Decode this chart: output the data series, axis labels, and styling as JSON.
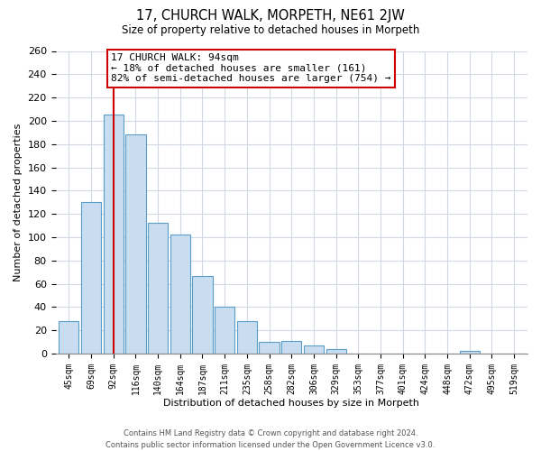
{
  "title": "17, CHURCH WALK, MORPETH, NE61 2JW",
  "subtitle": "Size of property relative to detached houses in Morpeth",
  "xlabel": "Distribution of detached houses by size in Morpeth",
  "ylabel": "Number of detached properties",
  "bin_labels": [
    "45sqm",
    "69sqm",
    "92sqm",
    "116sqm",
    "140sqm",
    "164sqm",
    "187sqm",
    "211sqm",
    "235sqm",
    "258sqm",
    "282sqm",
    "306sqm",
    "329sqm",
    "353sqm",
    "377sqm",
    "401sqm",
    "424sqm",
    "448sqm",
    "472sqm",
    "495sqm",
    "519sqm"
  ],
  "bar_heights": [
    28,
    130,
    205,
    188,
    112,
    102,
    67,
    40,
    28,
    10,
    11,
    7,
    4,
    0,
    0,
    0,
    0,
    0,
    2,
    0,
    0
  ],
  "bar_color": "#c8ddef",
  "bar_edge_color": "#5b9dc9",
  "property_line_x": 2,
  "property_line_color": "#cc0000",
  "annotation_text": "17 CHURCH WALK: 94sqm\n← 18% of detached houses are smaller (161)\n82% of semi-detached houses are larger (754) →",
  "annotation_box_color": "#ffffff",
  "annotation_box_edge_color": "#cc0000",
  "ylim": [
    0,
    260
  ],
  "yticks": [
    0,
    20,
    40,
    60,
    80,
    100,
    120,
    140,
    160,
    180,
    200,
    220,
    240,
    260
  ],
  "footer_line1": "Contains HM Land Registry data © Crown copyright and database right 2024.",
  "footer_line2": "Contains public sector information licensed under the Open Government Licence v3.0.",
  "background_color": "#ffffff",
  "grid_color": "#d0d8e4"
}
